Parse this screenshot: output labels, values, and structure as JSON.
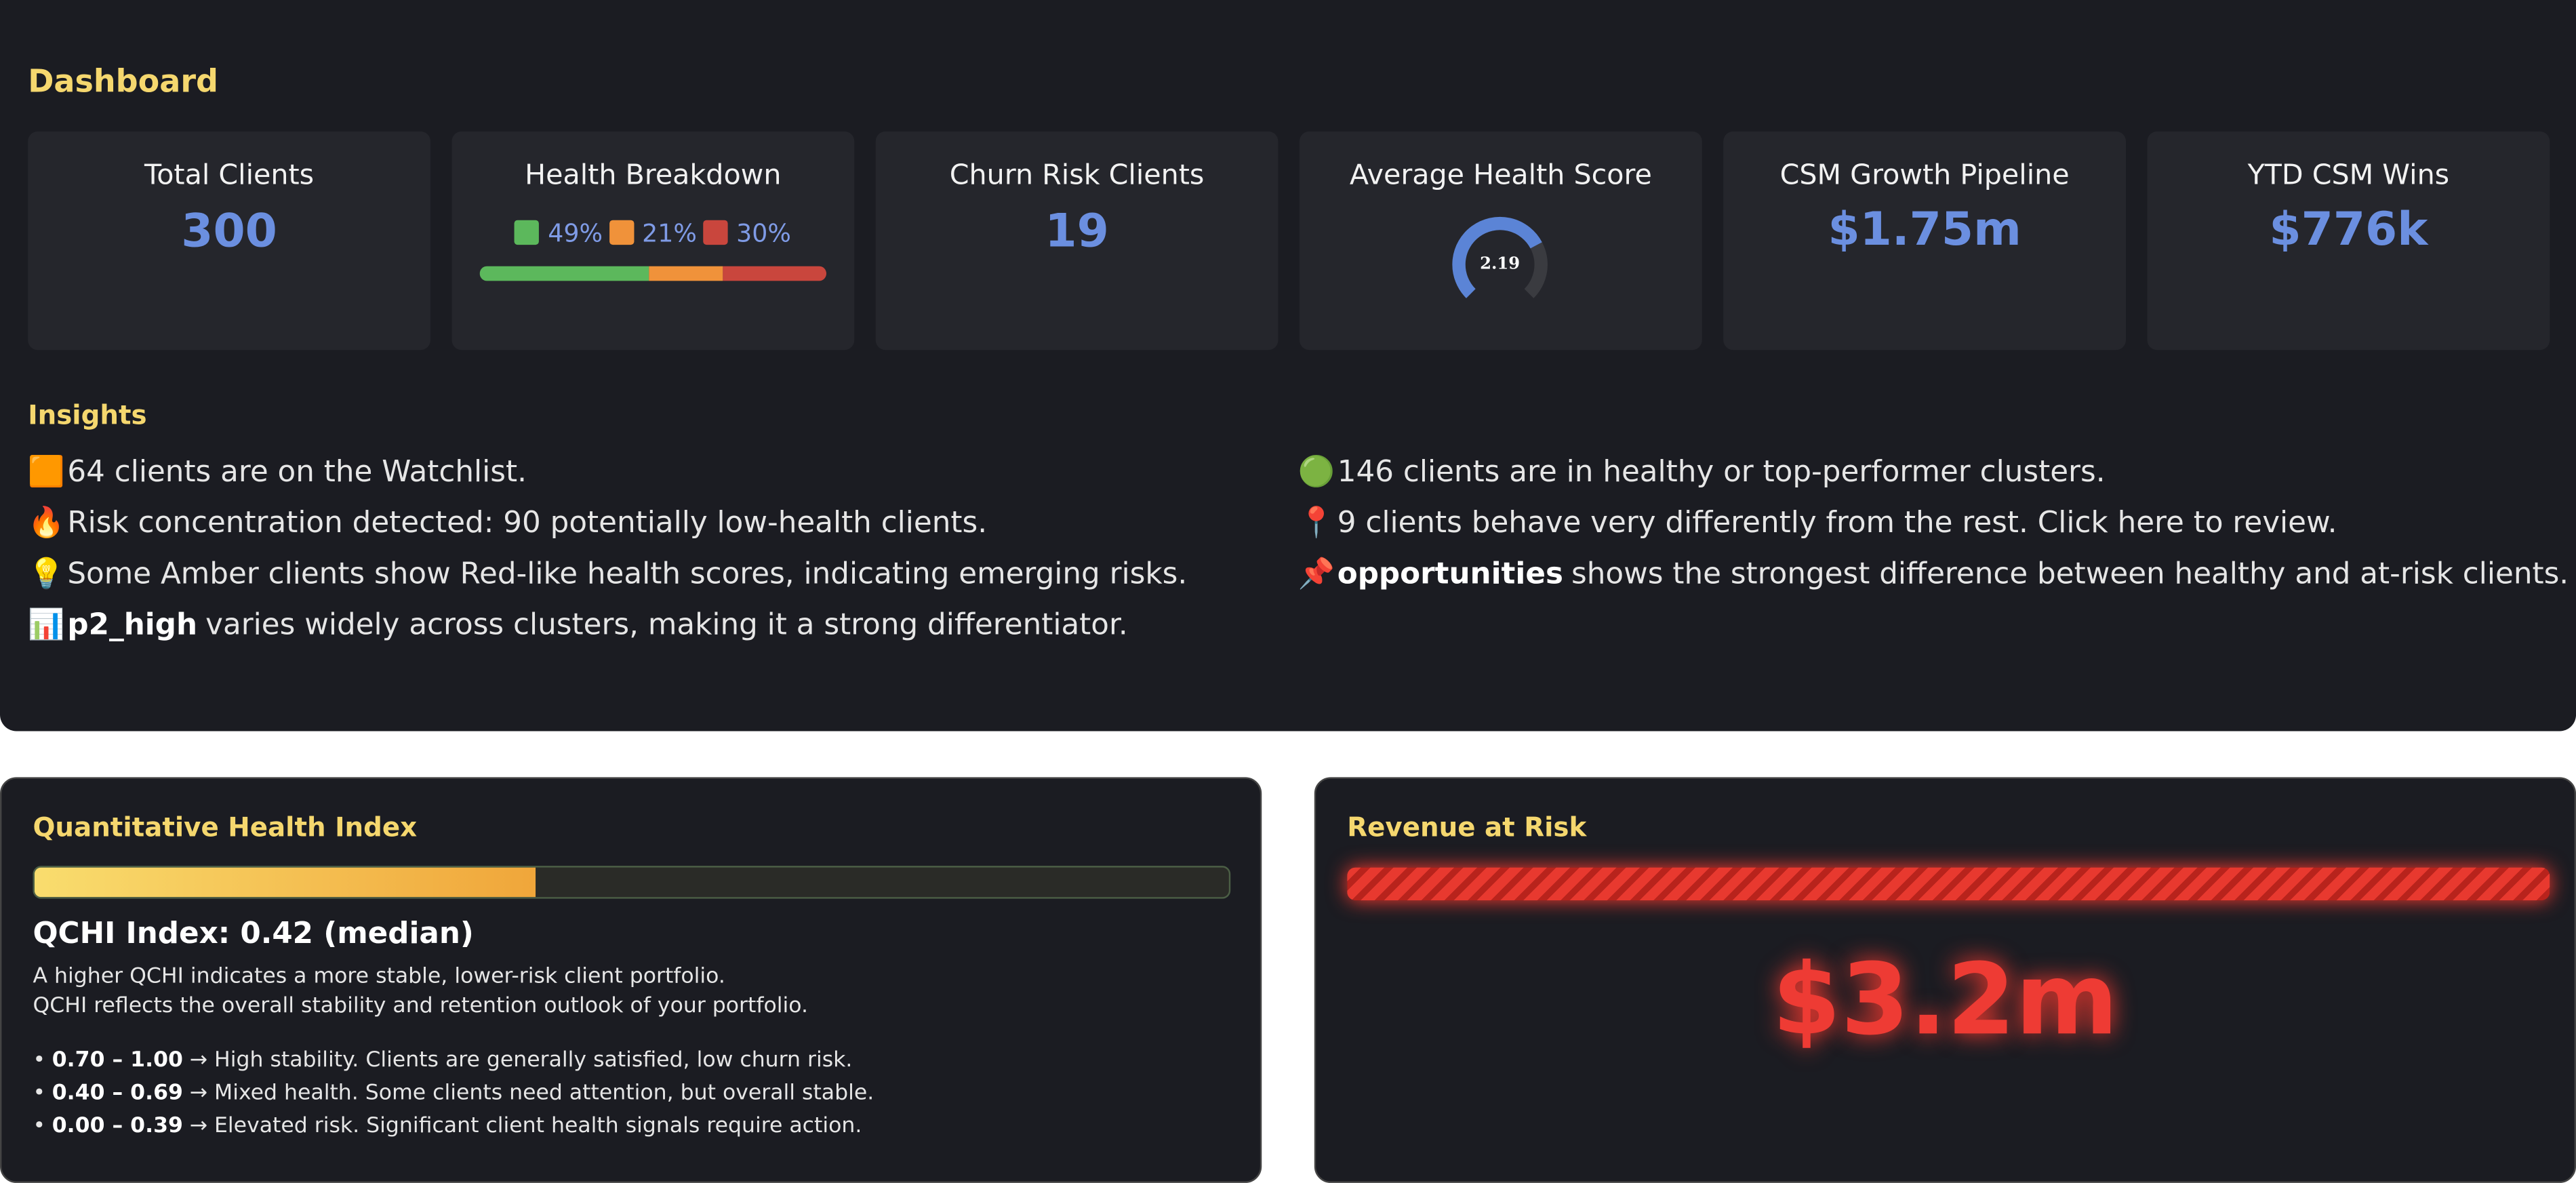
{
  "header": {
    "title": "Dashboard"
  },
  "cards": {
    "total_clients": {
      "title": "Total Clients",
      "value": 300
    },
    "health_breakdown": {
      "title": "Health Breakdown",
      "segments": [
        {
          "value": 49,
          "label": "49%",
          "color": "#5cb85c"
        },
        {
          "value": 21,
          "label": "21%",
          "color": "#f0923a"
        },
        {
          "value": 30,
          "label": "30%",
          "color": "#c9463d"
        }
      ]
    },
    "churn_risk": {
      "title": "Churn Risk Clients",
      "value": 19
    },
    "average_health": {
      "title": "Average Health Score",
      "value": 2.19,
      "range": [
        0,
        3
      ]
    },
    "pipeline": {
      "title": "CSM Growth Pipeline",
      "value": "$1.75m"
    },
    "ytd_wins": {
      "title": "YTD CSM Wins",
      "value": "$776k"
    }
  },
  "insights": {
    "title": "Insights",
    "left": [
      {
        "icon": "🟧",
        "text": "64 clients are on the Watchlist."
      },
      {
        "icon": "🔥",
        "text": "Risk concentration detected: 90 potentially low-health clients."
      },
      {
        "icon": "💡",
        "text": "Some Amber clients show Red-like health scores, indicating emerging risks."
      },
      {
        "icon": "📊",
        "bold": "p2_high",
        "text": "varies widely across clusters, making it a strong differentiator."
      }
    ],
    "right": [
      {
        "icon": "🟢",
        "text": "146 clients are in healthy or top-performer clusters."
      },
      {
        "icon": "📍",
        "text": "9 clients behave very differently from the rest. Click here to review."
      },
      {
        "icon": "📌",
        "bold": "opportunities",
        "text": "shows the strongest difference between healthy and at-risk clients."
      }
    ]
  },
  "qchi": {
    "title": "Quantitative Health Index",
    "index_label": "QCHI Index:",
    "value": 0.42,
    "range": [
      0,
      1
    ],
    "note": "(median)",
    "description": [
      "A higher QCHI indicates a more stable, lower-risk client portfolio.",
      "QCHI reflects the overall stability and retention outlook of your portfolio."
    ],
    "bands": [
      {
        "range": "0.70 – 1.00",
        "text": "→ High stability. Clients are generally satisfied, low churn risk."
      },
      {
        "range": "0.40 – 0.69",
        "text": "→ Mixed health. Some clients need attention, but overall stable."
      },
      {
        "range": "0.00 – 0.39",
        "text": "→ Elevated risk. Significant client health signals require action."
      }
    ]
  },
  "revenue_at_risk": {
    "title": "Revenue at Risk",
    "value": "$3.2m"
  }
}
